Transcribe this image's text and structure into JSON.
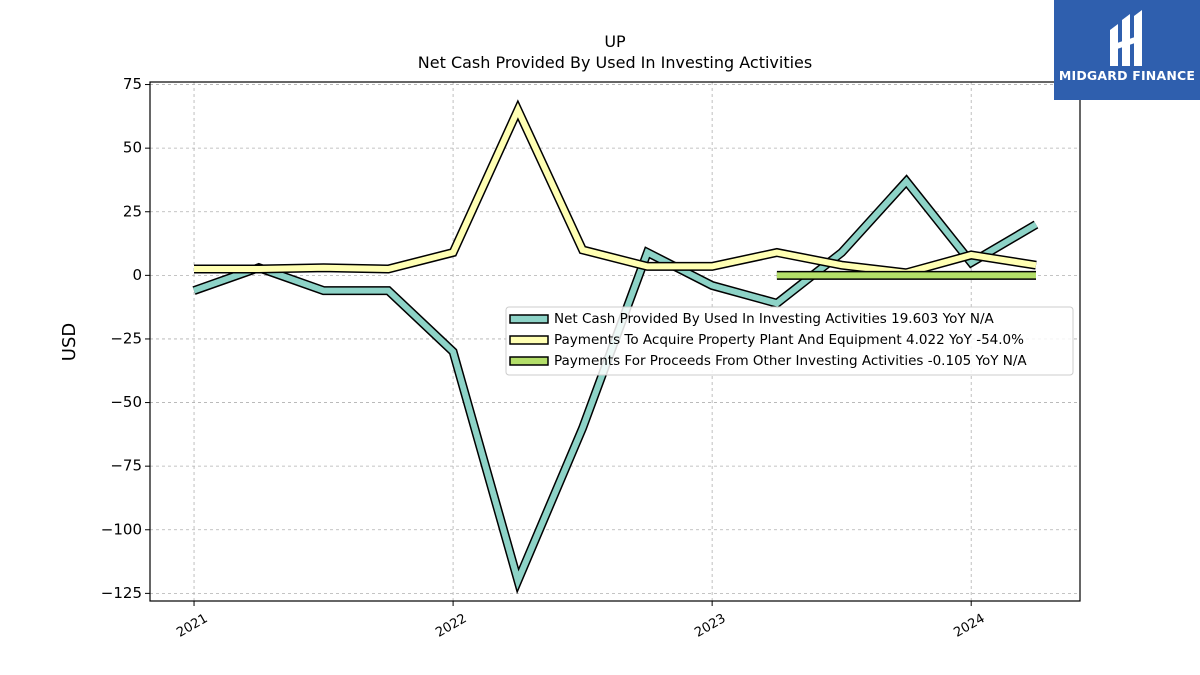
{
  "title_line1": "UP",
  "title_line2": "Net Cash Provided By Used In Investing Activities",
  "brand": "MIDGARD FINANCE",
  "chart_data": {
    "type": "line",
    "ylabel": "USD",
    "xlabel": "",
    "ylim": [
      -128,
      76
    ],
    "xlim": [
      2020.83,
      2024.42
    ],
    "yticks": [
      75,
      50,
      25,
      0,
      -25,
      -50,
      -75,
      -100,
      -125
    ],
    "ytick_labels": [
      "75",
      "50",
      "25",
      "0",
      "−25",
      "−50",
      "−75",
      "−100",
      "−125"
    ],
    "xticks": [
      2021,
      2022,
      2023,
      2024
    ],
    "xtick_labels": [
      "2021",
      "2022",
      "2023",
      "2024"
    ],
    "grid": true,
    "legend_position": "center-right",
    "series": [
      {
        "name": "Net Cash Provided By Used In Investing Activities  19.603 YoY N/A",
        "color": "#8dd3c7",
        "x": [
          2021.0,
          2021.25,
          2021.5,
          2021.75,
          2022.0,
          2022.25,
          2022.5,
          2022.75,
          2023.0,
          2023.25,
          2023.5,
          2023.75,
          2024.0,
          2024.25
        ],
        "y": [
          -6,
          3,
          -6,
          -6,
          -30,
          -120,
          -60,
          9,
          -4,
          -11,
          9,
          37,
          5,
          20
        ]
      },
      {
        "name": "Payments To Acquire Property Plant And Equipment  4.022 YoY -54.0%",
        "color": "#ffffb3",
        "x": [
          2021.0,
          2021.25,
          2021.5,
          2021.75,
          2022.0,
          2022.25,
          2022.5,
          2022.75,
          2023.0,
          2023.25,
          2023.5,
          2023.75,
          2024.0,
          2024.25
        ],
        "y": [
          2.5,
          2.5,
          3,
          2.5,
          9,
          65,
          10,
          3.5,
          3.5,
          9,
          4,
          1,
          8,
          4
        ]
      },
      {
        "name": "Payments For Proceeds From Other Investing Activities  -0.105 YoY N/A",
        "color": "#b3de69",
        "x": [
          2023.25,
          2023.5,
          2023.75,
          2024.0,
          2024.25
        ],
        "y": [
          0,
          0,
          0,
          0,
          0
        ]
      }
    ]
  }
}
